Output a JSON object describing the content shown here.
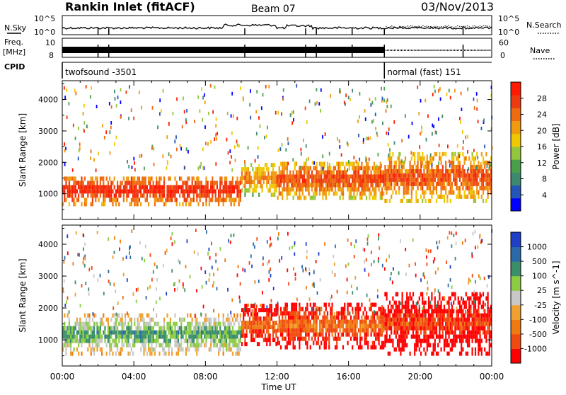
{
  "header": {
    "station": "Rankin Inlet (fitACF)",
    "beam": "Beam 07",
    "date": "03/Nov/2013"
  },
  "strips": {
    "nsky_label": "N.Sky",
    "nsky_ticks": [
      "10^5",
      "10^0"
    ],
    "nsearch_label": "N.Search",
    "nsearch_ticks": [
      "10^5",
      "10^0"
    ],
    "freq_label": "Freq.",
    "freq_unit": "[MHz]",
    "freq_ticks": [
      "10",
      "8"
    ],
    "nave_label": "Nave",
    "nave_ticks": [
      "60",
      "0"
    ],
    "cpid_label": "CPID",
    "modes": [
      {
        "name": "twofsound -3501",
        "start_hour": 0,
        "end_hour": 18
      },
      {
        "name": "normal (fast) 151",
        "start_hour": 18,
        "end_hour": 24
      }
    ]
  },
  "chart_data": [
    {
      "type": "heatmap",
      "panel": "power",
      "ylabel": "Slant Range [km]",
      "ylim": [
        180,
        4600
      ],
      "yticks": [
        1000,
        2000,
        3000,
        4000
      ],
      "xlim": [
        0,
        24
      ],
      "colorbar_label": "Power [dB]",
      "colorbar_ticks": [
        "28",
        "24",
        "20",
        "16",
        "12",
        "8",
        "4"
      ],
      "colorbar_colors": [
        "#0000ff",
        "#2455b8",
        "#3c8a6e",
        "#49a04a",
        "#93c63a",
        "#f0c800",
        "#f09a10",
        "#f06a10",
        "#ee3a10",
        "#ff1a00"
      ],
      "echo_bands": [
        {
          "start_hour": 0.0,
          "end_hour": 10.0,
          "min_km": 600,
          "max_km": 1500,
          "level": 9
        },
        {
          "start_hour": 10.0,
          "end_hour": 12.0,
          "min_km": 900,
          "max_km": 1900,
          "level": 7
        },
        {
          "start_hour": 12.0,
          "end_hour": 18.0,
          "min_km": 800,
          "max_km": 2000,
          "level": 8
        },
        {
          "start_hour": 18.0,
          "end_hour": 24.0,
          "min_km": 700,
          "max_km": 2200,
          "level": 8
        }
      ]
    },
    {
      "type": "heatmap",
      "panel": "velocity",
      "ylabel": "Slant Range [km]",
      "ylim": [
        180,
        4600
      ],
      "yticks": [
        1000,
        2000,
        3000,
        4000
      ],
      "xlim": [
        0,
        24
      ],
      "xticks": [
        "00:00",
        "04:00",
        "08:00",
        "12:00",
        "16:00",
        "20:00",
        "00:00"
      ],
      "xlabel": "Time UT",
      "colorbar_label": "Velocity [m s^-1]",
      "colorbar_ticks": [
        "1000",
        "500",
        "100",
        "25",
        "-25",
        "-100",
        "-500",
        "-1000"
      ],
      "colorbar_colors": [
        "#ff0000",
        "#f04a10",
        "#f07a10",
        "#f0a030",
        "#c8c8c8",
        "#8dcc42",
        "#3a8f6a",
        "#2a6aa8",
        "#1e40c8"
      ],
      "echo_bands": [
        {
          "start_hour": 0.0,
          "end_hour": 10.0,
          "min_km": 500,
          "max_km": 1700,
          "level": 6
        },
        {
          "start_hour": 10.0,
          "end_hour": 12.0,
          "min_km": 800,
          "max_km": 2000,
          "level": 2
        },
        {
          "start_hour": 12.0,
          "end_hour": 18.0,
          "min_km": 700,
          "max_km": 2100,
          "level": 2
        },
        {
          "start_hour": 18.0,
          "end_hour": 24.0,
          "min_km": 500,
          "max_km": 2400,
          "level": 1
        }
      ]
    }
  ]
}
